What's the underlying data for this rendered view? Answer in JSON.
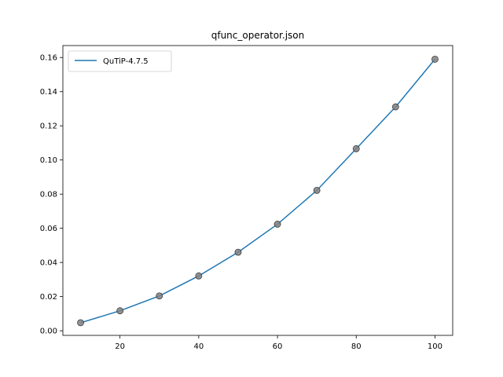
{
  "chart_data": {
    "type": "line",
    "title": "qfunc_operator.json",
    "xlabel": "",
    "ylabel": "",
    "xlim": [
      5.5,
      104.5
    ],
    "ylim": [
      -0.0027,
      0.167
    ],
    "x_ticks": [
      20,
      40,
      60,
      80,
      100
    ],
    "x_tick_labels": [
      "20",
      "40",
      "60",
      "80",
      "100"
    ],
    "y_ticks": [
      0.0,
      0.02,
      0.04,
      0.06,
      0.08,
      0.1,
      0.12,
      0.14,
      0.16
    ],
    "y_tick_labels": [
      "0.00",
      "0.02",
      "0.04",
      "0.06",
      "0.08",
      "0.10",
      "0.12",
      "0.14",
      "0.16"
    ],
    "grid": false,
    "legend_position": "top-left",
    "x": [
      10,
      20,
      30,
      40,
      50,
      60,
      70,
      80,
      90,
      100
    ],
    "series": [
      {
        "name": "QuTiP-4.7.5",
        "values": [
          0.0047,
          0.0117,
          0.0204,
          0.0321,
          0.046,
          0.0624,
          0.0822,
          0.1066,
          0.1311,
          0.159
        ],
        "color": "#1f77b4",
        "marker_color": "#808080"
      }
    ]
  }
}
